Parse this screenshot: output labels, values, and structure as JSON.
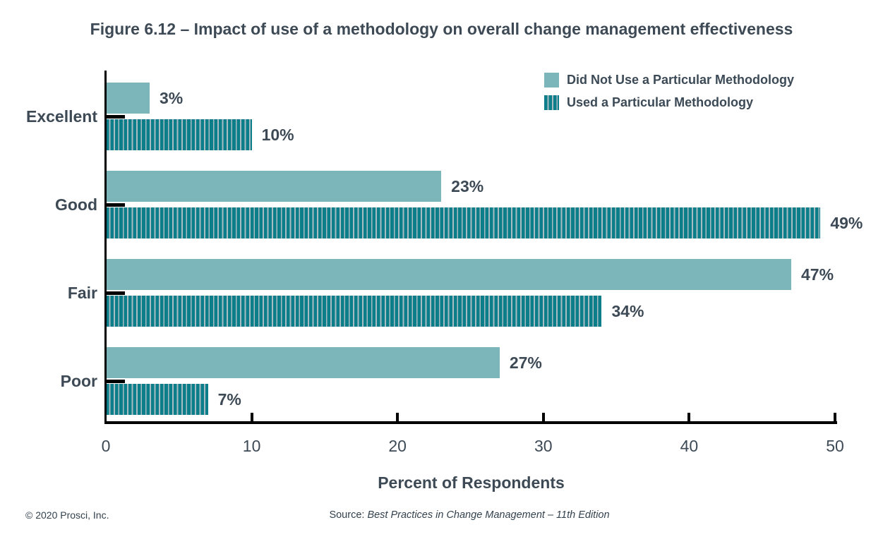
{
  "title": "Figure 6.12 – Impact of use of a methodology on overall change management effectiveness",
  "chart_data": {
    "type": "bar",
    "orientation": "horizontal",
    "title": "Figure 6.12 – Impact of use of a methodology on overall change management effectiveness",
    "categories": [
      "Excellent",
      "Good",
      "Fair",
      "Poor"
    ],
    "series": [
      {
        "name": "Did Not Use a Particular Methodology",
        "values": [
          3,
          23,
          47,
          27
        ],
        "pattern": "solid",
        "color": "#7db6ba"
      },
      {
        "name": "Used a Particular Methodology",
        "values": [
          10,
          49,
          34,
          7
        ],
        "pattern": "striped",
        "color": "#0b7e8a",
        "stripe_color": "#a9bcc4"
      }
    ],
    "value_suffix": "%",
    "xlabel": "Percent of Respondents",
    "xlim": [
      0,
      50
    ],
    "xticks": [
      0,
      10,
      20,
      30,
      40,
      50
    ],
    "grid": false,
    "legend_position": "top-right"
  },
  "colors": {
    "text": "#3d4a55",
    "axis": "#000000",
    "background": "#ffffff"
  },
  "footer": {
    "copyright": "© 2020 Prosci, Inc.",
    "source_prefix": "Source: ",
    "source_title": "Best Practices in Change Management – 11th Edition"
  }
}
